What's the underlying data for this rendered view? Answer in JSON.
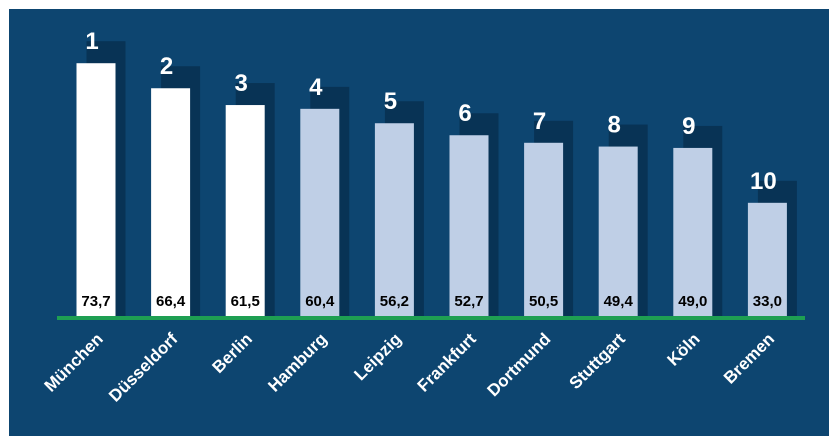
{
  "chart_data": {
    "type": "bar",
    "categories": [
      "München",
      "Düsseldorf",
      "Berlin",
      "Hamburg",
      "Leipzig",
      "Frankfurt",
      "Dortmund",
      "Stuttgart",
      "Köln",
      "Bremen"
    ],
    "values": [
      73.7,
      66.4,
      61.5,
      60.4,
      56.2,
      52.7,
      50.5,
      49.4,
      49.0,
      33.0
    ],
    "value_labels": [
      "73,7",
      "66,4",
      "61,5",
      "60,4",
      "56,2",
      "52,7",
      "50,5",
      "49,4",
      "49,0",
      "33,0"
    ],
    "ranks": [
      "1",
      "2",
      "3",
      "4",
      "5",
      "6",
      "7",
      "8",
      "9",
      "10"
    ],
    "title": "",
    "xlabel": "",
    "ylabel": "",
    "ylim": [
      0,
      80
    ],
    "grid": false,
    "legend": "none",
    "colors": {
      "background": "#0d4570",
      "top_bar": "#ffffff",
      "other_bar": "#bfcfe6",
      "baseline": "#1e9f52",
      "label_text": "#ffffff",
      "value_text": "#000000",
      "shadow": "#05243f"
    },
    "highlight_count": 3
  }
}
